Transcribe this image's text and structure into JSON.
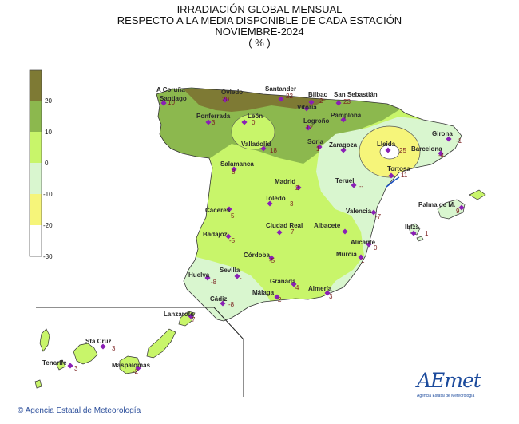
{
  "title": {
    "line1": "IRRADIACIÓN GLOBAL MENSUAL",
    "line2": "RESPECTO A LA MEDIA DISPONIBLE DE CADA ESTACIÓN",
    "line3": "NOVIEMBRE-2024",
    "line4": "( % )"
  },
  "legend": {
    "labels": [
      "20",
      "10",
      "0",
      "-10",
      "-20",
      "-30"
    ],
    "colors": [
      "#7e7a34",
      "#8cb84e",
      "#c8f56a",
      "#d9f6cf",
      "#f6f57a",
      "#ffffff"
    ]
  },
  "stations": [
    {
      "name": "A Coruña",
      "value": "10"
    },
    {
      "name": "Santiago",
      "value": ""
    },
    {
      "name": "Oviedo",
      "value": "20"
    },
    {
      "name": "Santander",
      "value": "22"
    },
    {
      "name": "Bilbao",
      "value": "2"
    },
    {
      "name": "San Sebastián",
      "value": "23"
    },
    {
      "name": "Vitoria",
      "value": ""
    },
    {
      "name": "Pamplona",
      "value": ""
    },
    {
      "name": "Logroño",
      "value": "12"
    },
    {
      "name": "Ponferrada",
      "value": "3"
    },
    {
      "name": "León",
      "value": "0"
    },
    {
      "name": "Valladolid",
      "value": "18"
    },
    {
      "name": "Soria",
      "value": "1"
    },
    {
      "name": "Zaragoza",
      "value": ""
    },
    {
      "name": "Lleida",
      "value": "25"
    },
    {
      "name": "Girona",
      "value": "-1"
    },
    {
      "name": "Barcelona",
      "value": "-4"
    },
    {
      "name": "Tortosa",
      "value": "11"
    },
    {
      "name": "Salamanca",
      "value": "8"
    },
    {
      "name": "Madrid",
      "value": "2"
    },
    {
      "name": "Teruel",
      "value": "--"
    },
    {
      "name": "Toledo",
      "value": "3"
    },
    {
      "name": "Cáceres",
      "value": "5"
    },
    {
      "name": "Valencia",
      "value": "-7"
    },
    {
      "name": "Palma de M.",
      "value": "9"
    },
    {
      "name": "Ibiza",
      "value": "1"
    },
    {
      "name": "Badajoz",
      "value": "-5"
    },
    {
      "name": "Ciudad Real",
      "value": "7"
    },
    {
      "name": "Albacete",
      "value": ""
    },
    {
      "name": "Alicante",
      "value": "0"
    },
    {
      "name": "Córdoba",
      "value": "-5"
    },
    {
      "name": "Murcia",
      "value": "1"
    },
    {
      "name": "Huelva",
      "value": "-8"
    },
    {
      "name": "Sevilla",
      "value": "-"
    },
    {
      "name": "Granada",
      "value": "4"
    },
    {
      "name": "Almería",
      "value": "3"
    },
    {
      "name": "Cádiz",
      "value": "-8"
    },
    {
      "name": "Málaga",
      "value": "2"
    },
    {
      "name": "Lanzarote",
      "value": "7"
    },
    {
      "name": "Sta Cruz",
      "value": "3"
    },
    {
      "name": "Tenerife",
      "value": "3"
    },
    {
      "name": "Maspalomas",
      "value": "-2"
    }
  ],
  "logo": {
    "word": "AEmet",
    "sub": "Agencia Estatal de Meteorología"
  },
  "footer": "© Agencia Estatal de Meteorología"
}
